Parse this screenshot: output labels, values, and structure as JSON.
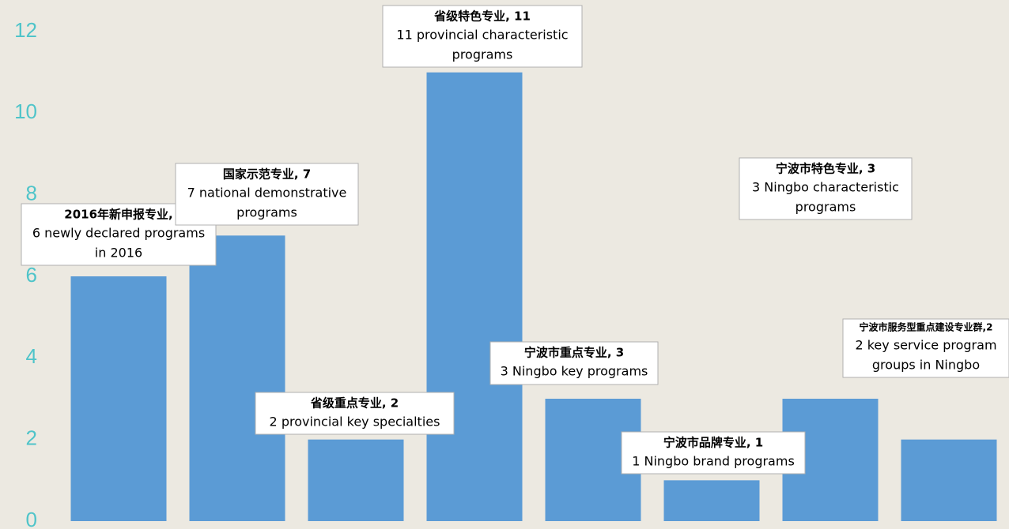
{
  "chart_data": {
    "type": "bar",
    "values": [
      6,
      7,
      2,
      11,
      3,
      1,
      3,
      2
    ],
    "color": "#5b9bd5",
    "ylim": [
      0,
      12
    ],
    "yticks": [
      0,
      2,
      4,
      6,
      8,
      10,
      12
    ],
    "labels": [
      {
        "title": "2016年新申报专业,",
        "lines": [
          "6 newly declared programs",
          "in 2016"
        ]
      },
      {
        "title": "国家示范专业, 7",
        "lines": [
          "7 national demonstrative",
          "programs"
        ]
      },
      {
        "title": "省级重点专业, 2",
        "lines": [
          "2 provincial key specialties"
        ]
      },
      {
        "title": "省级特色专业, 11",
        "lines": [
          "11 provincial characteristic",
          "programs"
        ]
      },
      {
        "title": "宁波市重点专业, 3",
        "lines": [
          "3 Ningbo key programs"
        ]
      },
      {
        "title": "宁波市品牌专业, 1",
        "lines": [
          "1 Ningbo brand programs"
        ]
      },
      {
        "title": "宁波市特色专业, 3",
        "lines": [
          "3 Ningbo characteristic",
          "programs"
        ]
      },
      {
        "title": "宁波市服务型重点建设专业群,2",
        "lines": [
          "2 key service program",
          "groups in Ningbo"
        ]
      }
    ]
  }
}
